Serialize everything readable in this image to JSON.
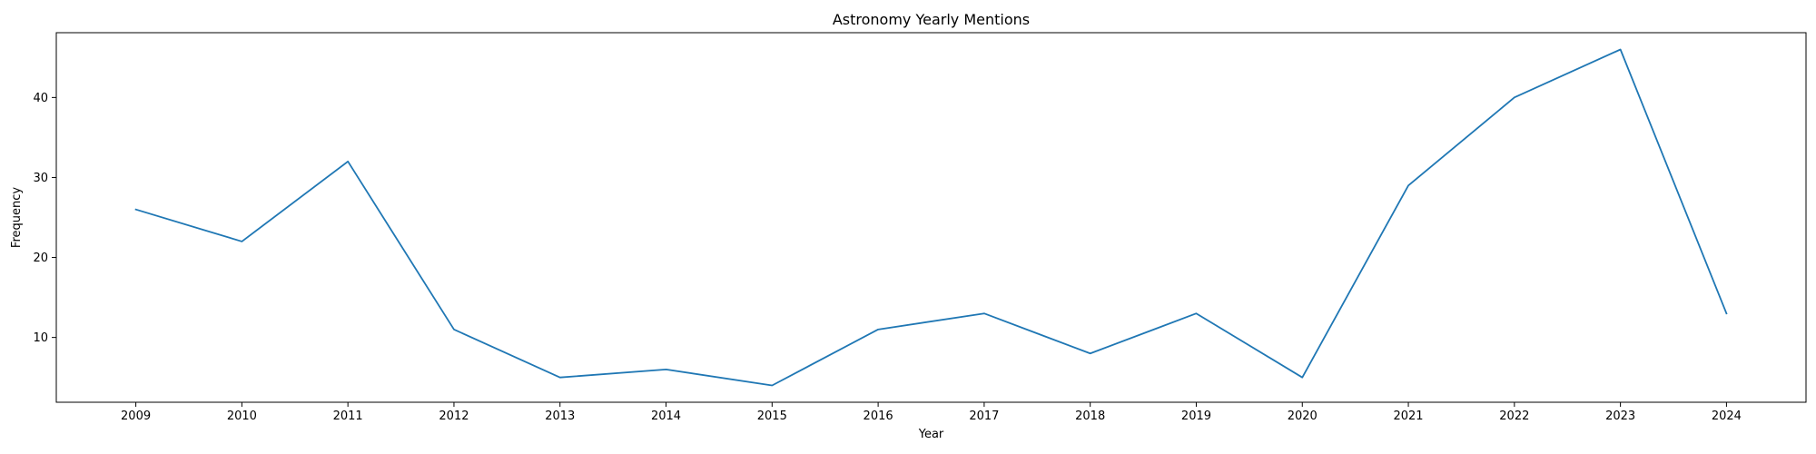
{
  "chart_data": {
    "type": "line",
    "title": "Astronomy Yearly Mentions",
    "xlabel": "Year",
    "ylabel": "Frequency",
    "x": [
      "2009",
      "2010",
      "2011",
      "2012",
      "2013",
      "2014",
      "2015",
      "2016",
      "2017",
      "2018",
      "2019",
      "2020",
      "2021",
      "2022",
      "2023",
      "2024"
    ],
    "series": [
      {
        "values": [
          26,
          22,
          32,
          11,
          5,
          6,
          4,
          11,
          13,
          8,
          13,
          5,
          29,
          40,
          46,
          13
        ],
        "color": "#1f77b4"
      }
    ],
    "yticks": [
      10,
      20,
      30,
      40
    ],
    "ylim": [
      1.9,
      48.1
    ],
    "xlim": [
      2008.25,
      2024.75
    ],
    "grid": false,
    "legend": "none"
  }
}
